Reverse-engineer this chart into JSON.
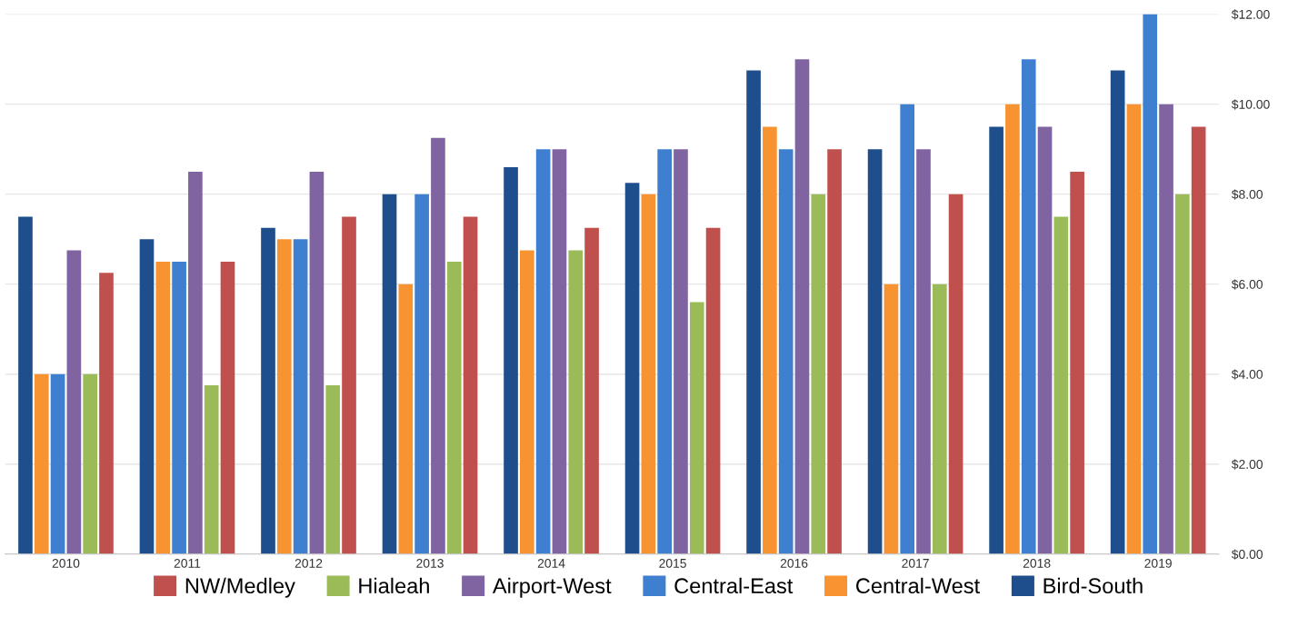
{
  "chart_data": {
    "type": "bar",
    "categories": [
      "2010",
      "2011",
      "2012",
      "2013",
      "2014",
      "2015",
      "2016",
      "2017",
      "2018",
      "2019"
    ],
    "series": [
      {
        "name": "Bird-South",
        "color": "#1f4e8c",
        "values": [
          7.5,
          7.0,
          7.25,
          8.0,
          8.6,
          8.25,
          10.75,
          9.0,
          9.5,
          10.75
        ]
      },
      {
        "name": "Central-West",
        "color": "#f79431",
        "values": [
          4.0,
          6.5,
          7.0,
          6.0,
          6.75,
          8.0,
          9.5,
          6.0,
          10.0,
          10.0
        ]
      },
      {
        "name": "Central-East",
        "color": "#3f7fd0",
        "values": [
          4.0,
          6.5,
          7.0,
          8.0,
          9.0,
          9.0,
          9.0,
          10.0,
          11.0,
          12.0
        ]
      },
      {
        "name": "Airport-West",
        "color": "#8064a2",
        "values": [
          6.75,
          8.5,
          8.5,
          9.25,
          9.0,
          9.0,
          11.0,
          9.0,
          9.5,
          10.0
        ]
      },
      {
        "name": "Hialeah",
        "color": "#9bbb59",
        "values": [
          4.0,
          3.75,
          3.75,
          6.5,
          6.75,
          5.6,
          8.0,
          6.0,
          7.5,
          8.0
        ]
      },
      {
        "name": "NW/Medley",
        "color": "#c0504d",
        "values": [
          6.25,
          6.5,
          7.5,
          7.5,
          7.25,
          7.25,
          9.0,
          8.0,
          8.5,
          9.5
        ]
      }
    ],
    "ylim": [
      0,
      12
    ],
    "yticks": [
      {
        "value": 0,
        "label": "$0.00"
      },
      {
        "value": 2,
        "label": "$2.00"
      },
      {
        "value": 4,
        "label": "$4.00"
      },
      {
        "value": 6,
        "label": "$6.00"
      },
      {
        "value": 8,
        "label": "$8.00"
      },
      {
        "value": 10,
        "label": "$10.00"
      },
      {
        "value": 12,
        "label": "$12.00"
      }
    ],
    "grid": "y",
    "legend": "bottom"
  }
}
